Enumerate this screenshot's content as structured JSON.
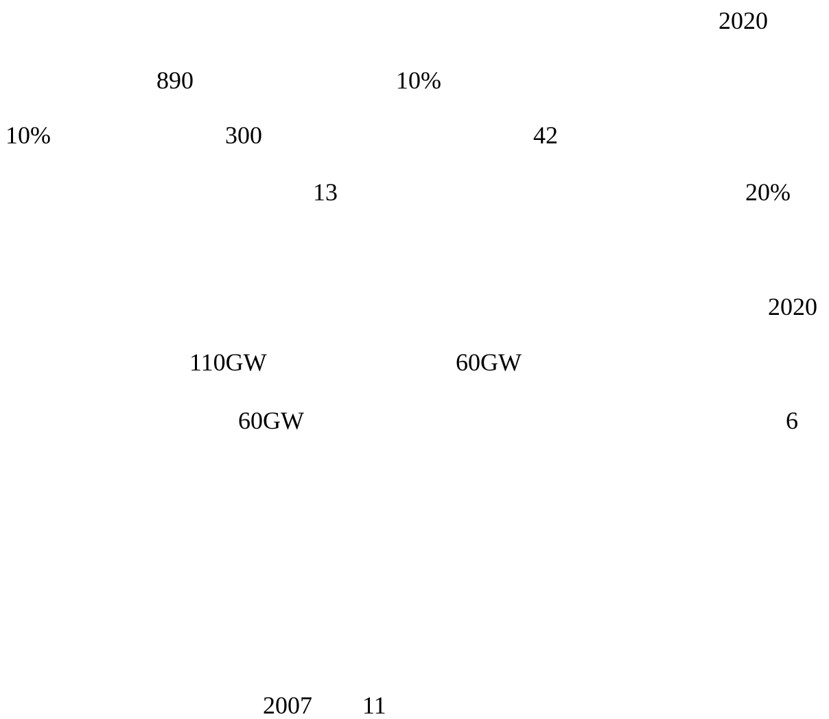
{
  "document": {
    "lines": [
      [
        "2020"
      ],
      [
        "890",
        "10%"
      ],
      [
        "10%",
        "300",
        "42"
      ],
      [
        "13",
        "20%"
      ],
      [
        "2020"
      ],
      [
        "110GW",
        "60GW"
      ],
      [
        "60GW",
        "6"
      ],
      [
        "2007",
        "11"
      ]
    ]
  }
}
